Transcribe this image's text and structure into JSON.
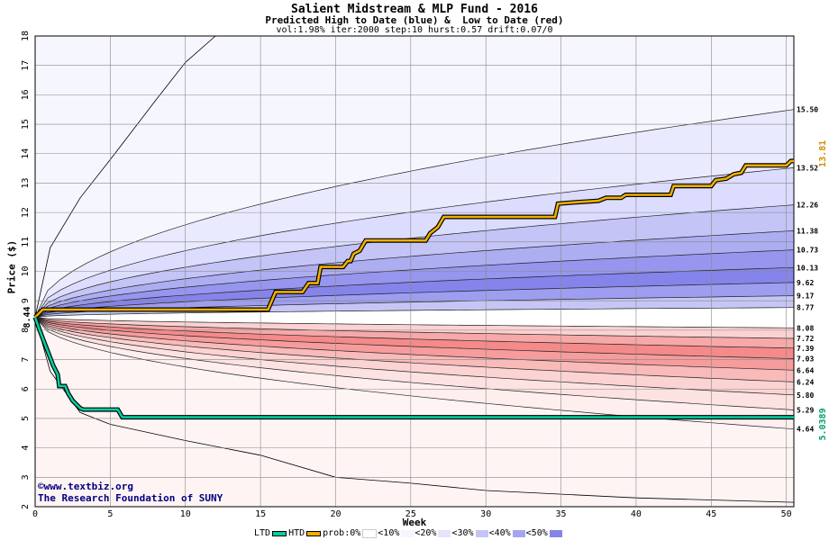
{
  "chart_data": {
    "type": "area",
    "title": "Salient Midstream & MLP Fund - 2016",
    "subtitle": "Predicted High to Date (blue) &  Low to Date (red)",
    "params": "vol:1.98% iter:2000 step:10 hurst:0.57 drift:0.07/0",
    "xlabel": "Week",
    "ylabel": "Price ($)",
    "xlim": [
      0,
      50.5
    ],
    "ylim": [
      2,
      18
    ],
    "xticks": [
      0,
      5,
      10,
      15,
      20,
      25,
      30,
      35,
      40,
      45,
      50
    ],
    "yticks": [
      2,
      3,
      4,
      5,
      6,
      7,
      8,
      9,
      10,
      11,
      12,
      13,
      14,
      15,
      16,
      17,
      18
    ],
    "grid": true,
    "start_price": 8.44,
    "start_label": "8.44",
    "blue_bands": [
      {
        "label": "15.50",
        "end": 15.5,
        "fill": "#eaeaff"
      },
      {
        "label": "13.52",
        "end": 13.52,
        "fill": "#dcdcff"
      },
      {
        "label": "12.26",
        "end": 12.26,
        "fill": "#c4c4f6"
      },
      {
        "label": "11.38",
        "end": 11.38,
        "fill": "#adadf2"
      },
      {
        "label": "10.73",
        "end": 10.73,
        "fill": "#9696ee"
      },
      {
        "label": "10.13",
        "end": 10.13,
        "fill": "#8484ea"
      },
      {
        "label": "9.62",
        "end": 9.62,
        "fill": "#9e9ef0"
      },
      {
        "label": "9.17",
        "end": 9.17,
        "fill": "#c6c6f6"
      },
      {
        "label": "8.77",
        "end": 8.77,
        "fill": "#e6e6fb"
      }
    ],
    "red_bands": [
      {
        "label": "8.08",
        "end": 8.08,
        "fill": "#fff0f0"
      },
      {
        "label": "7.72",
        "end": 7.72,
        "fill": "#fbd2d2"
      },
      {
        "label": "7.39",
        "end": 7.39,
        "fill": "#f7a8a8"
      },
      {
        "label": "7.03",
        "end": 7.03,
        "fill": "#f48a8a"
      },
      {
        "label": "6.64",
        "end": 6.64,
        "fill": "#f69c9c"
      },
      {
        "label": "6.24",
        "end": 6.24,
        "fill": "#f9baba"
      },
      {
        "label": "5.80",
        "end": 5.8,
        "fill": "#fbd3d3"
      },
      {
        "label": "5.29",
        "end": 5.29,
        "fill": "#fde2e2"
      },
      {
        "label": "4.64",
        "end": 4.64,
        "fill": "#feeeee"
      }
    ],
    "outer_high": {
      "x": [
        0,
        1,
        3,
        5,
        8,
        10,
        12
      ],
      "y": [
        8.44,
        10.8,
        12.5,
        13.8,
        15.8,
        17.1,
        18
      ]
    },
    "outer_low": {
      "x": [
        0,
        1,
        3,
        5,
        10,
        15,
        20,
        25,
        30,
        40,
        50.5
      ],
      "y": [
        8.44,
        6.6,
        5.2,
        4.8,
        4.25,
        3.75,
        3.0,
        2.8,
        2.55,
        2.3,
        2.15
      ]
    },
    "htd": {
      "name": "HTD",
      "x": [
        0,
        0.5,
        15.5,
        16,
        17.8,
        18.2,
        18.8,
        19,
        20.5,
        20.8,
        21,
        21.2,
        21.6,
        22,
        22.5,
        26,
        26.3,
        26.8,
        27.2,
        34.6,
        34.8,
        36,
        37.5,
        38,
        39,
        39.3,
        42.3,
        42.5,
        45,
        45.3,
        46,
        46.5,
        47,
        47.3,
        50,
        50.3,
        50.5
      ],
      "y": [
        8.44,
        8.7,
        8.7,
        9.3,
        9.3,
        9.6,
        9.6,
        10.15,
        10.15,
        10.35,
        10.35,
        10.6,
        10.7,
        11.05,
        11.05,
        11.05,
        11.3,
        11.5,
        11.85,
        11.85,
        12.3,
        12.35,
        12.4,
        12.5,
        12.5,
        12.6,
        12.6,
        12.9,
        12.9,
        13.1,
        13.15,
        13.3,
        13.35,
        13.6,
        13.6,
        13.75,
        13.75
      ]
    },
    "ltd": {
      "name": "LTD",
      "x": [
        0,
        0.3,
        0.6,
        0.9,
        1.2,
        1.5,
        1.6,
        2.0,
        2.2,
        2.5,
        3.0,
        3.2,
        5.5,
        5.8,
        50.5
      ],
      "y": [
        8.44,
        8.0,
        7.6,
        7.2,
        6.8,
        6.5,
        6.1,
        6.1,
        5.85,
        5.6,
        5.35,
        5.3,
        5.3,
        5.04,
        5.04
      ]
    },
    "htd_end_label": "13.81",
    "ltd_end_label": "5.0389",
    "htd_color": "#d09000",
    "ltd_color": "#00a070"
  },
  "credit": {
    "line1": "©www.textbiz.org",
    "line2": "The Research Foundation of SUNY"
  },
  "legend": {
    "ltd": "LTD",
    "htd": "HTD",
    "prob": "prob:0%",
    "items": [
      {
        "label": "<10%",
        "fill": "#f6f6ff",
        "fill2": "#fff4f4"
      },
      {
        "label": "<20%",
        "fill": "#e4e4fb",
        "fill2": "#fde2e2"
      },
      {
        "label": "<30%",
        "fill": "#c4c4f6",
        "fill2": "#f9c4c4"
      },
      {
        "label": "<40%",
        "fill": "#a6a6f0",
        "fill2": "#f59e9e"
      },
      {
        "label": "<50%",
        "fill": "#8484ea",
        "fill2": "#f07c7c"
      }
    ]
  }
}
